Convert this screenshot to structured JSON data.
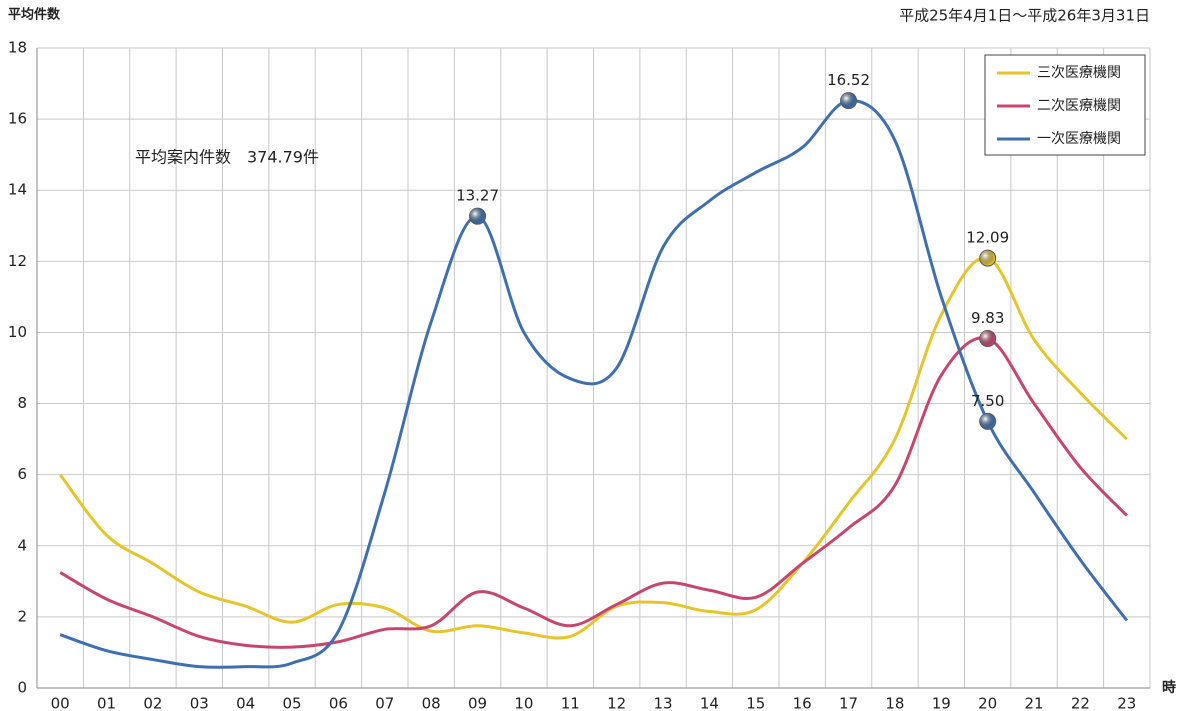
{
  "chart_data": {
    "type": "line",
    "y_axis_label": "平均件数",
    "subtitle": "平成25年4月1日～平成26年3月31日",
    "annotation": "平均案内件数　374.79件",
    "x_axis_label": "時",
    "categories": [
      "00",
      "01",
      "02",
      "03",
      "04",
      "05",
      "06",
      "07",
      "08",
      "09",
      "10",
      "11",
      "12",
      "13",
      "14",
      "15",
      "16",
      "17",
      "18",
      "19",
      "20",
      "21",
      "22",
      "23"
    ],
    "series": [
      {
        "name": "三次医療機関",
        "color": "#e6c52c",
        "values": [
          6.0,
          4.3,
          3.5,
          2.7,
          2.3,
          1.85,
          2.35,
          2.25,
          1.6,
          1.75,
          1.55,
          1.45,
          2.3,
          2.4,
          2.15,
          2.2,
          3.5,
          5.2,
          7.0,
          10.5,
          12.09,
          9.8,
          8.3,
          7.0
        ],
        "value_labels": [
          null,
          null,
          null,
          null,
          null,
          null,
          null,
          null,
          null,
          null,
          null,
          null,
          null,
          null,
          null,
          null,
          null,
          null,
          null,
          null,
          "12.09",
          null,
          null,
          null
        ]
      },
      {
        "name": "二次医療機関",
        "color": "#c8466e",
        "values": [
          3.25,
          2.5,
          2.0,
          1.45,
          1.2,
          1.15,
          1.3,
          1.65,
          1.75,
          2.7,
          2.25,
          1.75,
          2.35,
          2.95,
          2.75,
          2.55,
          3.5,
          4.5,
          5.7,
          8.8,
          9.83,
          8.0,
          6.2,
          4.85
        ],
        "value_labels": [
          null,
          null,
          null,
          null,
          null,
          null,
          null,
          null,
          null,
          null,
          null,
          null,
          null,
          null,
          null,
          null,
          null,
          null,
          null,
          null,
          "9.83",
          null,
          null,
          null
        ]
      },
      {
        "name": "一次医療機関",
        "color": "#3e6fb0",
        "values": [
          1.5,
          1.05,
          0.8,
          0.6,
          0.6,
          0.7,
          1.6,
          5.5,
          10.3,
          13.27,
          10.0,
          8.7,
          9.0,
          12.4,
          13.7,
          14.5,
          15.2,
          16.52,
          15.4,
          11.0,
          7.5,
          5.5,
          3.6,
          1.9
        ],
        "value_labels": [
          null,
          null,
          null,
          null,
          null,
          null,
          null,
          null,
          null,
          "13.27",
          null,
          null,
          null,
          null,
          null,
          null,
          null,
          "16.52",
          null,
          null,
          "7.50",
          null,
          null,
          null
        ]
      }
    ],
    "ylim": [
      0,
      18
    ],
    "yticks": [
      0,
      2,
      4,
      6,
      8,
      10,
      12,
      14,
      16,
      18
    ],
    "grid": true,
    "legend": "upper right"
  }
}
